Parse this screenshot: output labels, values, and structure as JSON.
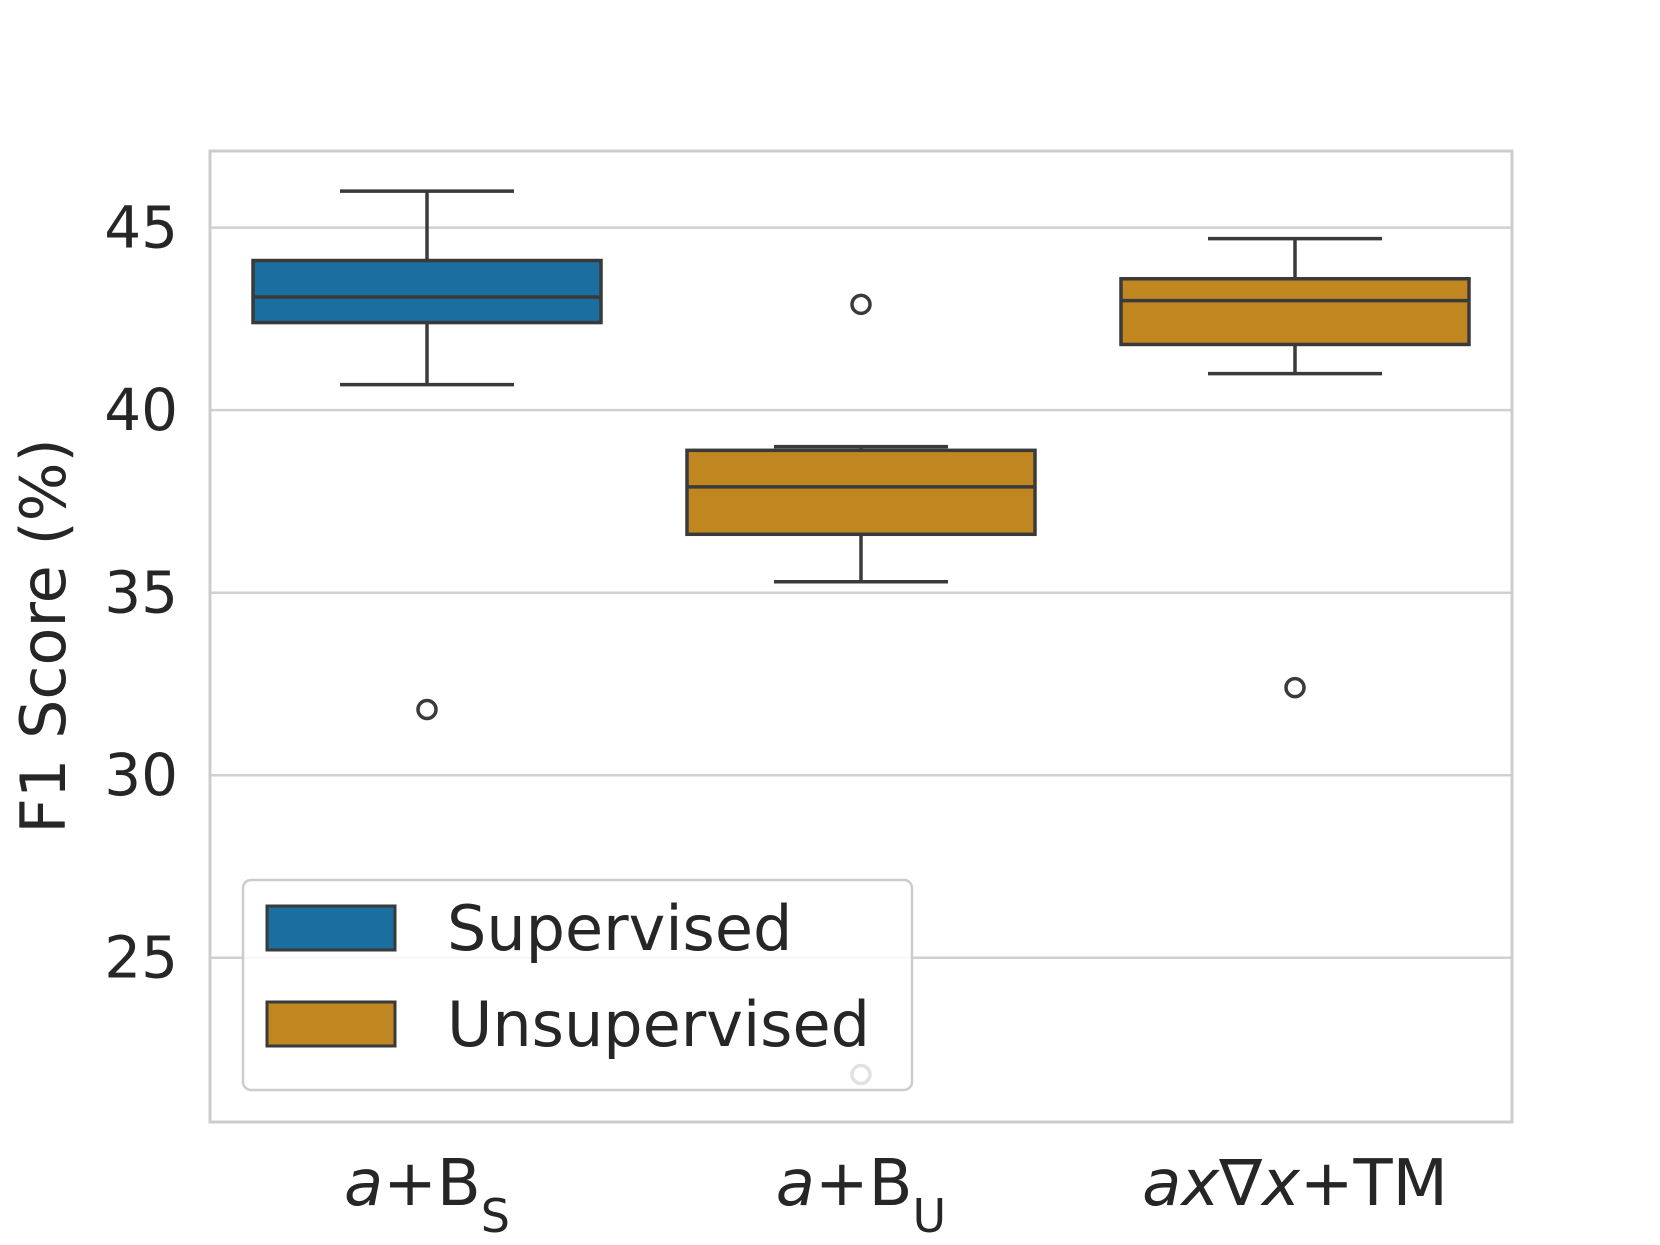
{
  "colors": {
    "supervised": "#1a6fa0",
    "unsupervised": "#c08620",
    "line": "#3a3a3a",
    "grid": "#d0d0d0",
    "frame": "#cccccc"
  },
  "chart_data": {
    "type": "box",
    "ylabel": "F1 Score (%)",
    "ylim": [
      20.5,
      47.1
    ],
    "yticks": [
      25,
      30,
      35,
      40,
      45
    ],
    "grid": "horizontal",
    "legend": {
      "placement": "lower-left",
      "entries": [
        {
          "label": "Supervised",
          "color_key": "supervised"
        },
        {
          "label": "Unsupervised",
          "color_key": "unsupervised"
        }
      ]
    },
    "categories": [
      {
        "id": "a+BS",
        "parts": [
          {
            "t": "a",
            "italic": true
          },
          {
            "t": "+B"
          },
          {
            "t": "S",
            "sub": true
          }
        ]
      },
      {
        "id": "a+BU",
        "parts": [
          {
            "t": "a",
            "italic": true
          },
          {
            "t": "+B"
          },
          {
            "t": "U",
            "sub": true
          }
        ]
      },
      {
        "id": "ax∇x+TM",
        "parts": [
          {
            "t": "ax",
            "italic": true
          },
          {
            "t": "∇"
          },
          {
            "t": "x",
            "italic": true
          },
          {
            "t": "+TM"
          }
        ]
      }
    ],
    "boxes": [
      {
        "category": "a+BS",
        "group": "Supervised",
        "whisker_low": 40.7,
        "q1": 42.4,
        "median": 43.1,
        "q3": 44.1,
        "whisker_high": 46.0,
        "outliers": [
          31.8
        ]
      },
      {
        "category": "a+BU",
        "group": "Unsupervised",
        "whisker_low": 35.3,
        "q1": 36.6,
        "median": 37.9,
        "q3": 38.9,
        "whisker_high": 39.0,
        "outliers": [
          42.9,
          21.8
        ]
      },
      {
        "category": "ax∇x+TM",
        "group": "Unsupervised",
        "whisker_low": 41.0,
        "q1": 41.8,
        "median": 43.0,
        "q3": 43.6,
        "whisker_high": 44.7,
        "outliers": [
          32.4
        ]
      }
    ]
  }
}
